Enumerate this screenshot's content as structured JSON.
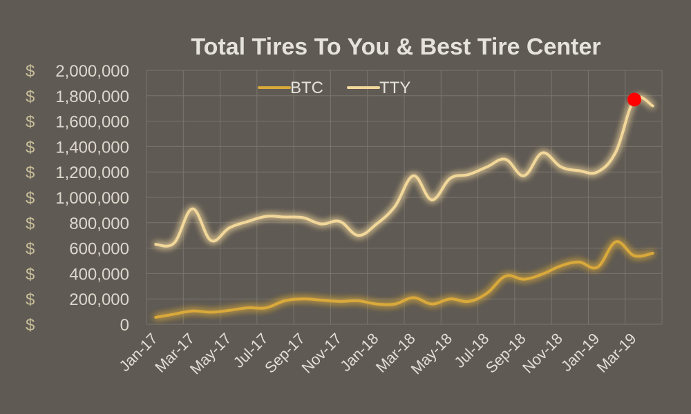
{
  "chart_data": {
    "type": "line",
    "title": "Total Tires To You & Best Tire Center",
    "y_prefix": "$",
    "ylim": [
      0,
      2000000
    ],
    "y_ticks": [
      0,
      200000,
      400000,
      600000,
      800000,
      1000000,
      1200000,
      1400000,
      1600000,
      1800000,
      2000000
    ],
    "y_tick_labels": [
      "0",
      "200,000",
      "400,000",
      "600,000",
      "800,000",
      "1,000,000",
      "1,200,000",
      "1,400,000",
      "1,600,000",
      "1,800,000",
      "2,000,000"
    ],
    "x": [
      "Jan-17",
      "Feb-17",
      "Mar-17",
      "Apr-17",
      "May-17",
      "Jun-17",
      "Jul-17",
      "Aug-17",
      "Sep-17",
      "Oct-17",
      "Nov-17",
      "Dec-17",
      "Jan-18",
      "Feb-18",
      "Mar-18",
      "Apr-18",
      "May-18",
      "Jun-18",
      "Jul-18",
      "Aug-18",
      "Sep-18",
      "Oct-18",
      "Nov-18",
      "Dec-18",
      "Jan-19",
      "Feb-19",
      "Mar-19",
      "Apr-19"
    ],
    "x_tick_labels": [
      "Jan-17",
      "Mar-17",
      "May-17",
      "Jul-17",
      "Sep-17",
      "Nov-17",
      "Jan-18",
      "Mar-18",
      "May-18",
      "Jul-18",
      "Sep-18",
      "Nov-18",
      "Jan-19",
      "Mar-19"
    ],
    "series": [
      {
        "name": "BTC",
        "color": "#d9a93a",
        "values": [
          55000,
          80000,
          105000,
          95000,
          110000,
          130000,
          130000,
          185000,
          200000,
          190000,
          180000,
          185000,
          160000,
          160000,
          210000,
          160000,
          200000,
          180000,
          245000,
          380000,
          355000,
          395000,
          460000,
          490000,
          450000,
          650000,
          540000,
          560000
        ]
      },
      {
        "name": "TTY",
        "color": "#f2d79a",
        "values": [
          630000,
          640000,
          910000,
          660000,
          760000,
          810000,
          850000,
          845000,
          840000,
          790000,
          810000,
          700000,
          790000,
          930000,
          1170000,
          980000,
          1150000,
          1180000,
          1240000,
          1300000,
          1170000,
          1350000,
          1240000,
          1210000,
          1200000,
          1360000,
          1770000,
          1720000
        ]
      }
    ],
    "highlight": {
      "series": "TTY",
      "x": "Mar-19",
      "value": 1770000,
      "color": "#ff0000"
    },
    "legend": {
      "position": "top-left",
      "items": [
        "BTC",
        "TTY"
      ]
    },
    "grid": true
  }
}
